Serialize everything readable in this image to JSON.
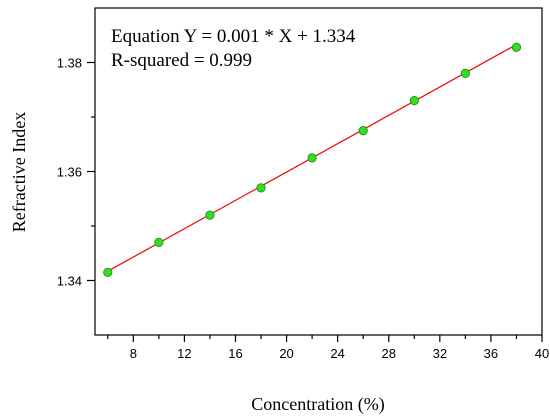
{
  "chart_data": {
    "type": "scatter",
    "xlabel": "Concentration (%)",
    "ylabel": "Refractive Index",
    "xlim": [
      5,
      40
    ],
    "ylim": [
      1.33,
      1.39
    ],
    "xticks": [
      8,
      12,
      16,
      20,
      24,
      28,
      32,
      36,
      40
    ],
    "xtick_labels": [
      "8",
      "12",
      "16",
      "20",
      "24",
      "28",
      "32",
      "36",
      "40"
    ],
    "yticks": [
      1.34,
      1.36,
      1.38
    ],
    "ytick_labels": [
      "1.34",
      "1.36",
      "1.38"
    ],
    "series": [
      {
        "x": [
          6,
          10,
          14,
          18,
          22,
          26,
          30,
          34,
          38
        ],
        "y": [
          1.3415,
          1.347,
          1.352,
          1.357,
          1.3625,
          1.3675,
          1.373,
          1.378,
          1.3828
        ]
      }
    ],
    "fit": {
      "slope": 0.0013,
      "intercept": 1.3339,
      "x_range": [
        6,
        38
      ]
    },
    "annotations": [
      "Equation Y = 0.001 * X + 1.334",
      "R-squared = 0.999"
    ],
    "grid": false,
    "colors": {
      "marker_fill": "#33dd22",
      "marker_edge": "#1a8a10",
      "fit_line": "#ee1111",
      "axis": "#000000"
    }
  }
}
